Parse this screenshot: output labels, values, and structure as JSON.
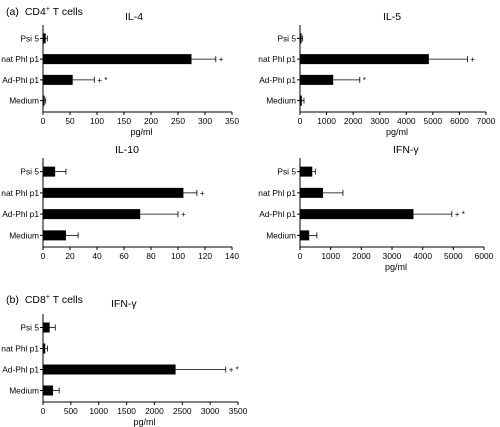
{
  "sections": [
    {
      "label": "(a)",
      "cells": "CD4",
      "sup": "+",
      "rest": " T cells"
    },
    {
      "label": "(b)",
      "cells": "CD8",
      "sup": "+",
      "rest": " T cells"
    }
  ],
  "colors": {
    "bar": "#000000",
    "axis": "#000000",
    "background": "#ffffff"
  },
  "chart_data": [
    {
      "type": "bar",
      "orientation": "horizontal",
      "title": "IL-4",
      "xlabel": "pg/ml",
      "categories": [
        "Psi 5",
        "nat Phl p1",
        "Ad-Phl p1",
        "Medium"
      ],
      "values": [
        5,
        275,
        55,
        3
      ],
      "errors": [
        3,
        45,
        40,
        2
      ],
      "marks": [
        "",
        "+",
        "+ *",
        ""
      ],
      "xlim": [
        0,
        350
      ],
      "xticks": [
        0,
        50,
        100,
        150,
        200,
        250,
        300,
        350
      ]
    },
    {
      "type": "bar",
      "orientation": "horizontal",
      "title": "IL-5",
      "xlabel": "pg/ml",
      "categories": [
        "Psi 5",
        "nat Phl p1",
        "Ad-Phl p1",
        "Medium"
      ],
      "values": [
        60,
        4850,
        1250,
        70
      ],
      "errors": [
        40,
        1450,
        1000,
        80
      ],
      "marks": [
        "",
        "+",
        "*",
        ""
      ],
      "xlim": [
        0,
        7000
      ],
      "xticks": [
        0,
        1000,
        2000,
        3000,
        4000,
        5000,
        6000,
        7000
      ]
    },
    {
      "type": "bar",
      "orientation": "horizontal",
      "title": "IL-10",
      "xlabel": "",
      "categories": [
        "Psi 5",
        "nat Phl p1",
        "Ad-Phl p1",
        "Medium"
      ],
      "values": [
        9,
        104,
        72,
        17
      ],
      "errors": [
        8,
        10,
        28,
        9
      ],
      "marks": [
        "",
        "+",
        "+",
        ""
      ],
      "xlim": [
        0,
        140
      ],
      "xticks": [
        0,
        20,
        40,
        60,
        80,
        100,
        120,
        140
      ]
    },
    {
      "type": "bar",
      "orientation": "horizontal",
      "title": "IFN-γ",
      "xlabel": "pg/ml",
      "categories": [
        "Psi 5",
        "nat Phl p1",
        "Ad-Phl p1",
        "Medium"
      ],
      "values": [
        400,
        750,
        3700,
        300
      ],
      "errors": [
        100,
        650,
        1250,
        250
      ],
      "marks": [
        "",
        "",
        "+ *",
        ""
      ],
      "xlim": [
        0,
        6000
      ],
      "xticks": [
        0,
        1000,
        2000,
        3000,
        4000,
        5000,
        6000
      ]
    },
    {
      "type": "bar",
      "orientation": "horizontal",
      "title": "IFN-γ",
      "xlabel": "pg/ml",
      "categories": [
        "Psi 5",
        "nat Phl p1",
        "Ad-Phl p1",
        "Medium"
      ],
      "values": [
        120,
        40,
        2380,
        180
      ],
      "errors": [
        100,
        40,
        900,
        110
      ],
      "marks": [
        "",
        "",
        "+ *",
        ""
      ],
      "xlim": [
        0,
        3500
      ],
      "xticks": [
        0,
        500,
        1000,
        1500,
        2000,
        2500,
        3000,
        3500
      ]
    }
  ]
}
